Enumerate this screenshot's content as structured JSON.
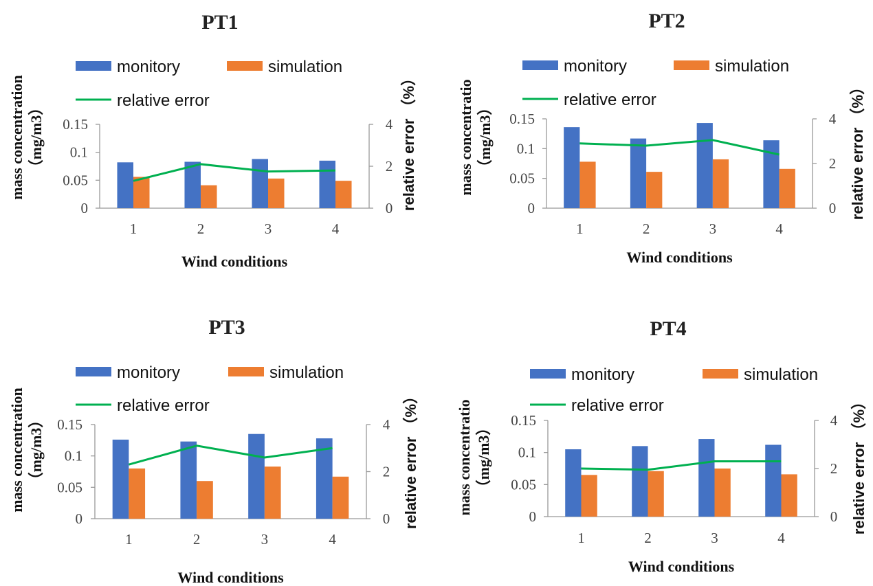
{
  "chart_data": [
    {
      "type": "bar",
      "title": "PT1",
      "categories": [
        "1",
        "2",
        "3",
        "4"
      ],
      "series": [
        {
          "name": "monitory",
          "axis": "left",
          "values": [
            0.082,
            0.083,
            0.088,
            0.085
          ]
        },
        {
          "name": "simulation",
          "axis": "left",
          "values": [
            0.056,
            0.041,
            0.053,
            0.049
          ]
        },
        {
          "name": "relative error",
          "axis": "right",
          "type": "line",
          "values": [
            1.3,
            2.1,
            1.75,
            1.8
          ]
        }
      ],
      "xlabel": "Wind conditions",
      "ylabel": "mass concentration （mg/m3）",
      "ylabel_lines": [
        "mass concentration",
        "（mg/m3）"
      ],
      "y2label": "relative error （%）",
      "ylim": [
        0,
        0.15
      ],
      "yticks": [
        "0",
        "0.05",
        "0.1",
        "0.15"
      ],
      "y2lim": [
        0,
        4
      ],
      "y2ticks": [
        "0",
        "2",
        "4"
      ]
    },
    {
      "type": "bar",
      "title": "PT2",
      "categories": [
        "1",
        "2",
        "3",
        "4"
      ],
      "series": [
        {
          "name": "monitory",
          "axis": "left",
          "values": [
            0.136,
            0.117,
            0.143,
            0.114
          ]
        },
        {
          "name": "simulation",
          "axis": "left",
          "values": [
            0.078,
            0.061,
            0.082,
            0.066
          ]
        },
        {
          "name": "relative error",
          "axis": "right",
          "type": "line",
          "values": [
            2.9,
            2.8,
            3.05,
            2.4
          ]
        }
      ],
      "xlabel": "Wind conditions",
      "ylabel": "mass concentratio （mg/m3）",
      "ylabel_lines": [
        "mass concentratio",
        "（mg/m3）"
      ],
      "y2label": "relative error （%）",
      "ylim": [
        0,
        0.15
      ],
      "yticks": [
        "0",
        "0.05",
        "0.1",
        "0.15"
      ],
      "y2lim": [
        0,
        4
      ],
      "y2ticks": [
        "0",
        "2",
        "4"
      ]
    },
    {
      "type": "bar",
      "title": "PT3",
      "categories": [
        "1",
        "2",
        "3",
        "4"
      ],
      "series": [
        {
          "name": "monitory",
          "axis": "left",
          "values": [
            0.126,
            0.123,
            0.135,
            0.128
          ]
        },
        {
          "name": "simulation",
          "axis": "left",
          "values": [
            0.08,
            0.06,
            0.083,
            0.067
          ]
        },
        {
          "name": "relative error",
          "axis": "right",
          "type": "line",
          "values": [
            2.3,
            3.1,
            2.6,
            3.0
          ]
        }
      ],
      "xlabel": "Wind conditions",
      "ylabel": "mass concentration （mg/m3）",
      "ylabel_lines": [
        "mass concentration",
        "（mg/m3）"
      ],
      "y2label": "relative error （%）",
      "ylim": [
        0,
        0.15
      ],
      "yticks": [
        "0",
        "0.05",
        "0.1",
        "0.15"
      ],
      "y2lim": [
        0,
        4
      ],
      "y2ticks": [
        "0",
        "2",
        "4"
      ]
    },
    {
      "type": "bar",
      "title": "PT4",
      "categories": [
        "1",
        "2",
        "3",
        "4"
      ],
      "series": [
        {
          "name": "monitory",
          "axis": "left",
          "values": [
            0.105,
            0.11,
            0.121,
            0.112
          ]
        },
        {
          "name": "simulation",
          "axis": "left",
          "values": [
            0.065,
            0.071,
            0.075,
            0.066
          ]
        },
        {
          "name": "relative error",
          "axis": "right",
          "type": "line",
          "values": [
            2.0,
            1.95,
            2.3,
            2.3
          ]
        }
      ],
      "xlabel": "Wind conditions",
      "ylabel": "mass concentratio （mg/m3）",
      "ylabel_lines": [
        "mass concentratio",
        "（mg/m3）"
      ],
      "y2label": "relative error （%）",
      "ylim": [
        0,
        0.15
      ],
      "yticks": [
        "0",
        "0.05",
        "0.1",
        "0.15"
      ],
      "y2lim": [
        0,
        4
      ],
      "y2ticks": [
        "0",
        "2",
        "4"
      ]
    }
  ],
  "colors": {
    "monitory": "#4472C4",
    "simulation": "#ED7D31",
    "relative_error": "#00B050"
  }
}
